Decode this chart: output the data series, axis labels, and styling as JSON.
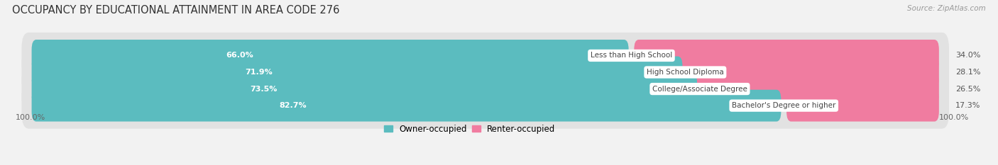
{
  "title": "OCCUPANCY BY EDUCATIONAL ATTAINMENT IN AREA CODE 276",
  "source": "Source: ZipAtlas.com",
  "categories": [
    "Less than High School",
    "High School Diploma",
    "College/Associate Degree",
    "Bachelor's Degree or higher"
  ],
  "owner_values": [
    66.0,
    71.9,
    73.5,
    82.7
  ],
  "renter_values": [
    34.0,
    28.1,
    26.5,
    17.3
  ],
  "owner_color": "#5bbcbf",
  "renter_color": "#f07ca0",
  "background_color": "#f2f2f2",
  "row_bg_color": "#e2e2e2",
  "title_fontsize": 10.5,
  "bar_label_fontsize": 8.0,
  "legend_fontsize": 8.5,
  "axis_label_fontsize": 8,
  "source_fontsize": 7.5,
  "legend_labels": [
    "Owner-occupied",
    "Renter-occupied"
  ]
}
